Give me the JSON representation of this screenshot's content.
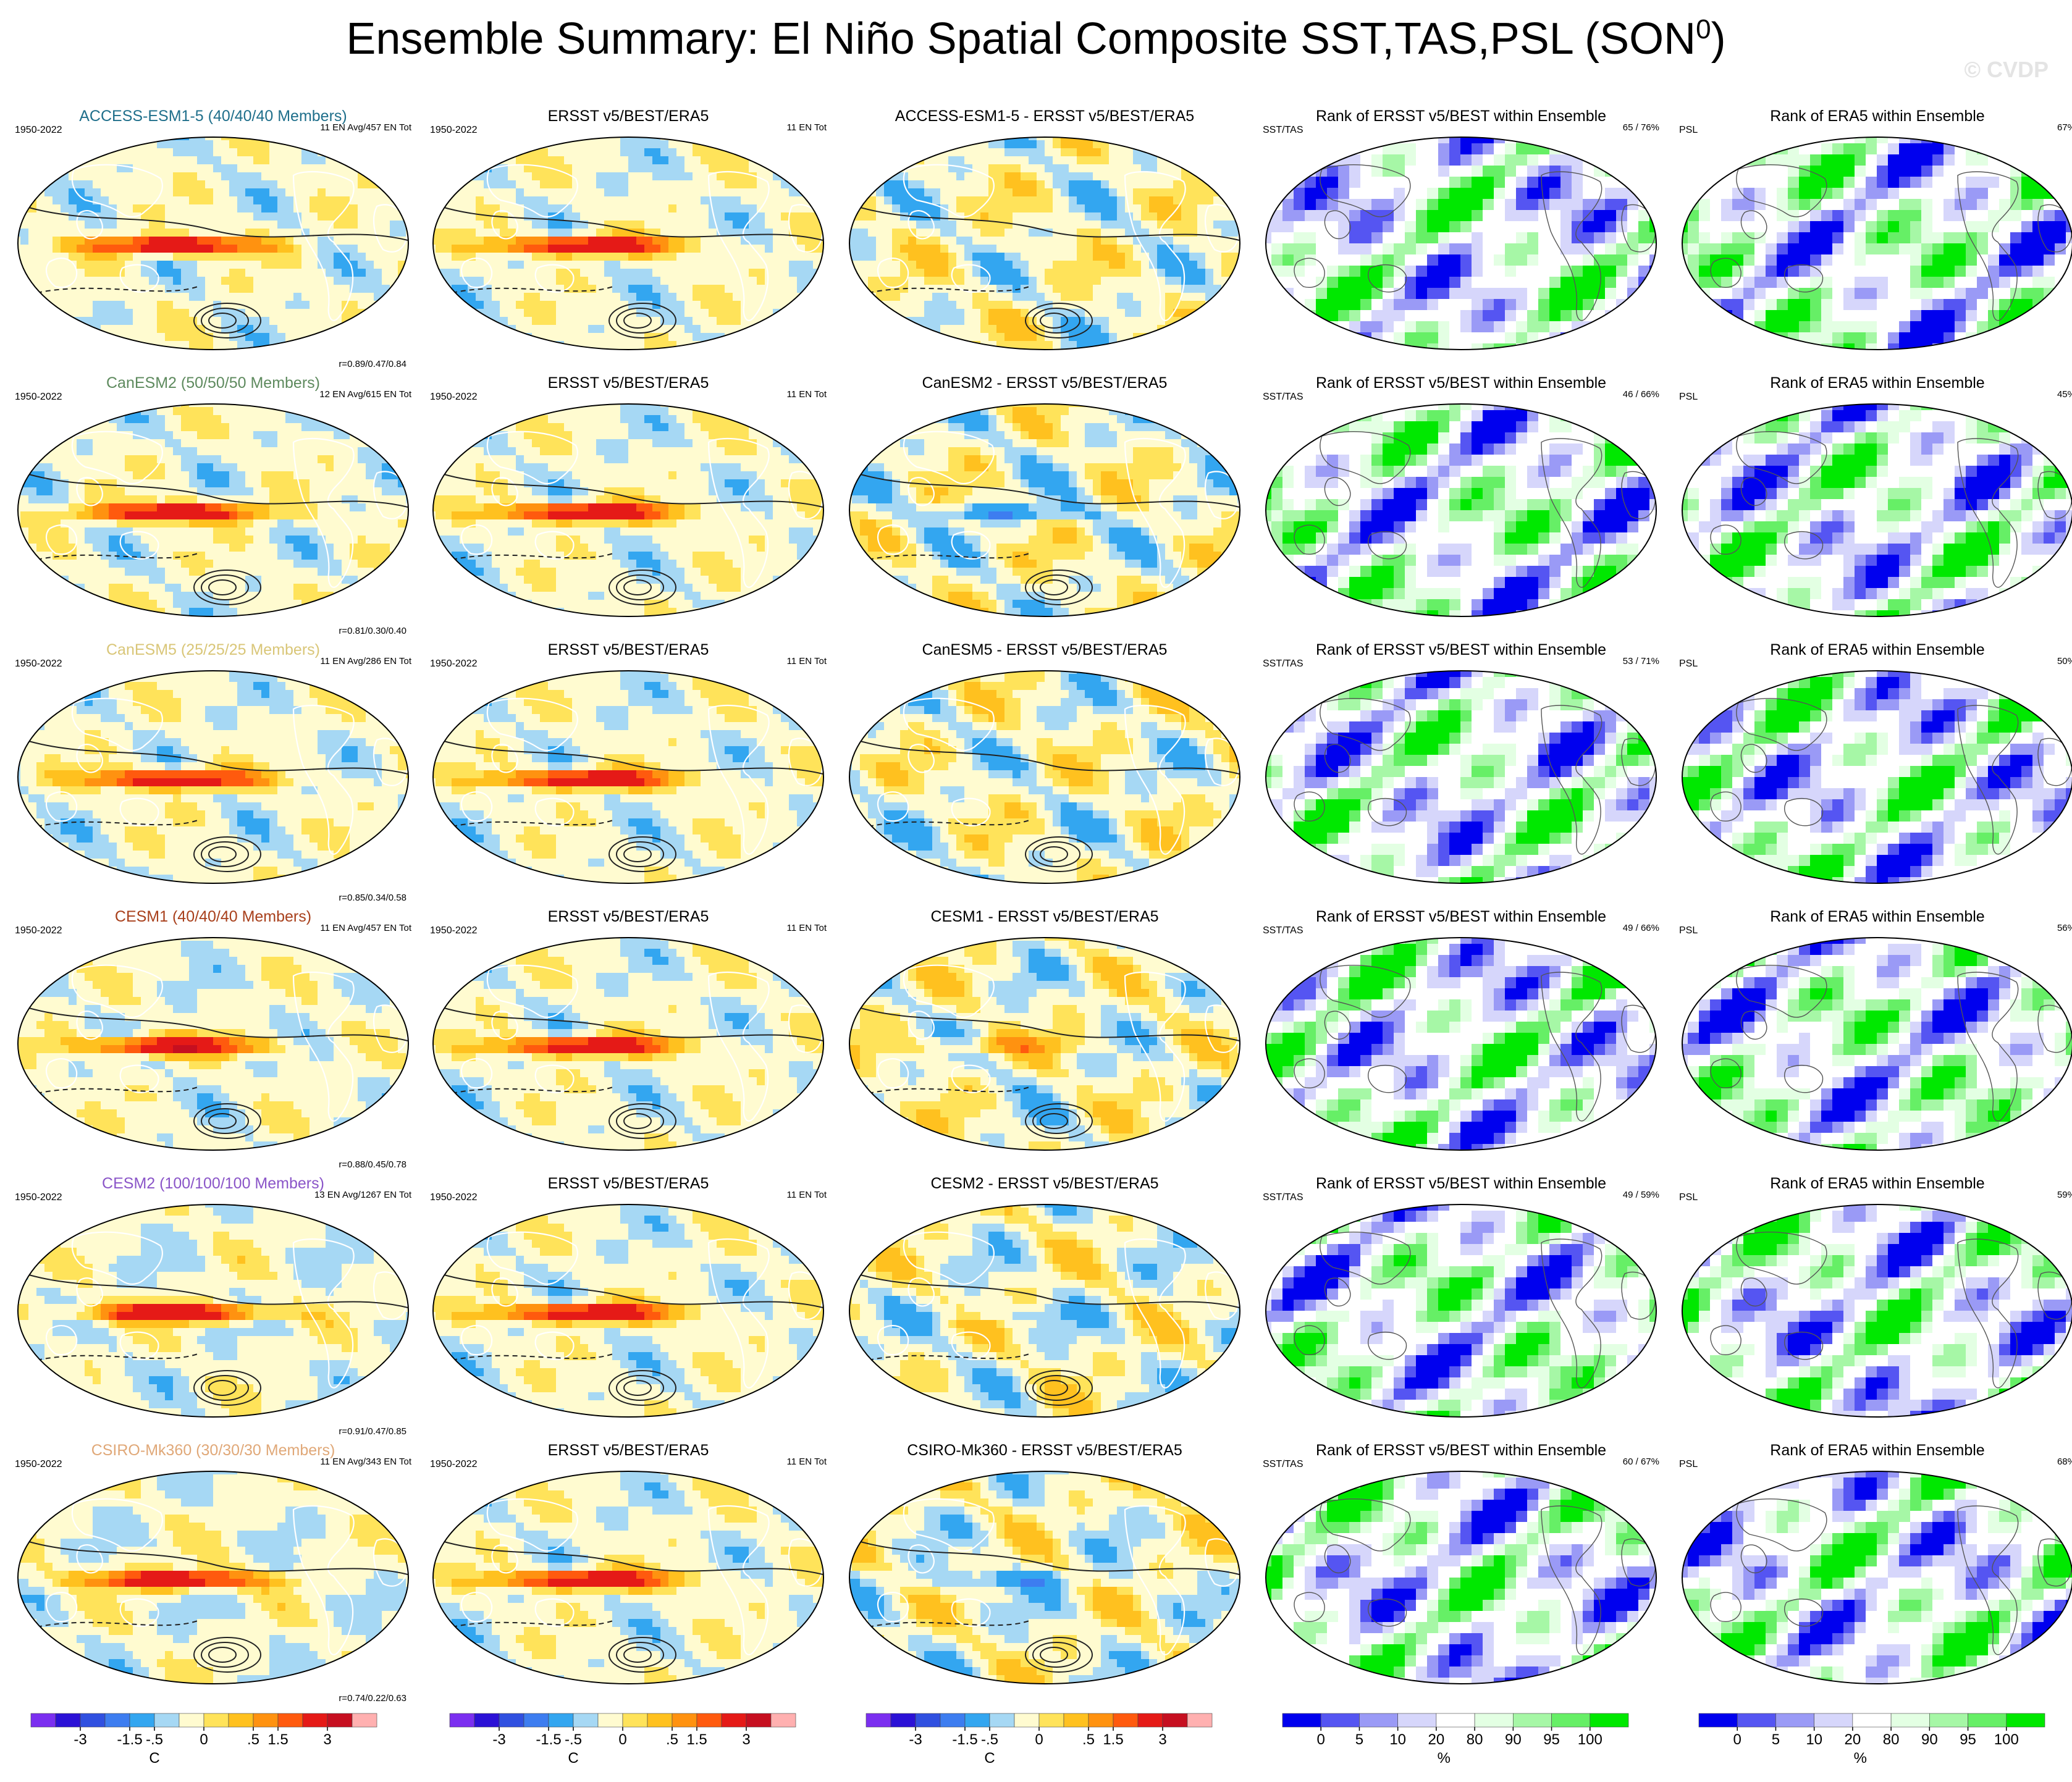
{
  "page": {
    "title": "Ensemble Summary: El Niño Spatial Composite SST,TAS,PSL (SON",
    "title_sup": "0",
    "title_close": ")",
    "watermark": "© CVDP"
  },
  "colors": {
    "diverging": [
      "#7b2ff0",
      "#2b11d6",
      "#3050e0",
      "#3d7df0",
      "#33a6f0",
      "#a6d8f4",
      "#fffbd0",
      "#ffe35a",
      "#ffc11f",
      "#ff9210",
      "#ff5a0e",
      "#e51a17",
      "#c60f20",
      "#ffb0b0"
    ],
    "rank": [
      "#0000ee",
      "#5555f2",
      "#9a9af6",
      "#d6d6fb",
      "#ffffff",
      "#e3ffe3",
      "#a6f7a6",
      "#66ef66",
      "#00e800"
    ]
  },
  "rows": [
    {
      "model": "ACCESS-ESM1-5",
      "model_color": "#1f6f8b",
      "model_label": "ACCESS-ESM1-5 (40/40/40 Members)",
      "tr1": "11 EN Avg/457 EN Tot",
      "r_text": "r=0.89/0.47/0.84",
      "diff_title": "ACCESS-ESM1-5 - ERSST v5/BEST/ERA5",
      "rank_sst": "65 /  76%",
      "rank_psl": "67%",
      "seed": 3
    },
    {
      "model": "CanESM2",
      "model_color": "#5e8a5e",
      "model_label": "CanESM2 (50/50/50 Members)",
      "tr1": "12 EN Avg/615 EN Tot",
      "r_text": "r=0.81/0.30/0.40",
      "diff_title": "CanESM2 - ERSST v5/BEST/ERA5",
      "rank_sst": "46 /  66%",
      "rank_psl": "45%",
      "seed": 11
    },
    {
      "model": "CanESM5",
      "model_color": "#d9c678",
      "model_label": "CanESM5 (25/25/25 Members)",
      "tr1": "11 EN Avg/286 EN Tot",
      "r_text": "r=0.85/0.34/0.58",
      "diff_title": "CanESM5 - ERSST v5/BEST/ERA5",
      "rank_sst": "53 /  71%",
      "rank_psl": "50%",
      "seed": 19
    },
    {
      "model": "CESM1",
      "model_color": "#a8401c",
      "model_label": "CESM1 (40/40/40 Members)",
      "tr1": "11 EN Avg/457 EN Tot",
      "r_text": "r=0.88/0.45/0.78",
      "diff_title": "CESM1 - ERSST v5/BEST/ERA5",
      "rank_sst": "49 /  66%",
      "rank_psl": "56%",
      "seed": 27
    },
    {
      "model": "CESM2",
      "model_color": "#8a55c8",
      "model_label": "CESM2 (100/100/100 Members)",
      "tr1": "13 EN Avg/1267 EN Tot",
      "r_text": "r=0.91/0.47/0.85",
      "diff_title": "CESM2 - ERSST v5/BEST/ERA5",
      "rank_sst": "49 /  59%",
      "rank_psl": "59%",
      "seed": 35
    },
    {
      "model": "CSIRO-Mk360",
      "model_color": "#e0a878",
      "model_label": "CSIRO-Mk360 (30/30/30 Members)",
      "tr1": "11 EN Avg/343 EN Tot",
      "r_text": "r=0.74/0.22/0.63",
      "diff_title": "CSIRO-Mk360 - ERSST v5/BEST/ERA5",
      "rank_sst": "60 /  67%",
      "rank_psl": "68%",
      "seed": 43
    }
  ],
  "common": {
    "years": "1950-2022",
    "obs_title": "ERSST v5/BEST/ERA5",
    "obs_tot": "11 EN Tot",
    "rank_sst_title": "Rank of ERSST v5/BEST within Ensemble",
    "rank_sst_label": "SST/TAS",
    "rank_psl_title": "Rank of ERA5 within Ensemble",
    "rank_psl_label": "PSL"
  },
  "colorbars": {
    "diverging": {
      "ticks": [
        "-3",
        "-1.5",
        "-.5",
        "0",
        ".5",
        "1.5",
        "3"
      ],
      "unit": "C"
    },
    "rank": {
      "ticks": [
        "0",
        "5",
        "10",
        "20",
        "80",
        "90",
        "95",
        "100"
      ],
      "unit": "%"
    }
  }
}
